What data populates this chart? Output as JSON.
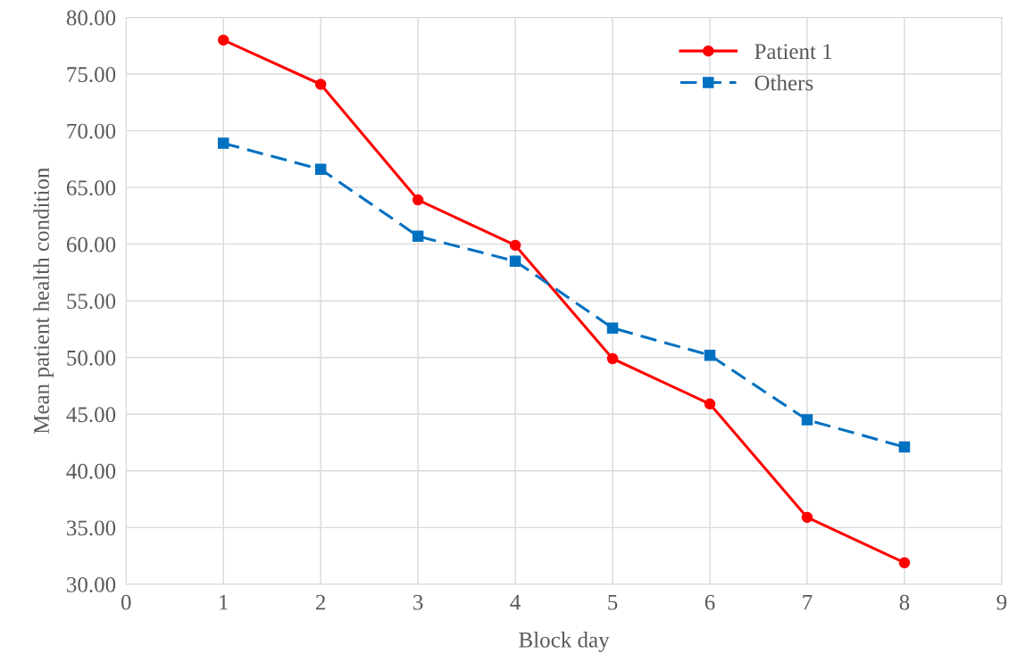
{
  "chart_data": {
    "type": "line",
    "xlabel": "Block day",
    "ylabel": "Mean patient health condition",
    "xlim": [
      0,
      9
    ],
    "xticks": [
      0,
      1,
      2,
      3,
      4,
      5,
      6,
      7,
      8,
      9
    ],
    "ylim": [
      30,
      80
    ],
    "yticks": [
      {
        "value": 30,
        "label": "30.00"
      },
      {
        "value": 35,
        "label": "35.00"
      },
      {
        "value": 40,
        "label": "40.00"
      },
      {
        "value": 45,
        "label": "45.00"
      },
      {
        "value": 50,
        "label": "50.00"
      },
      {
        "value": 55,
        "label": "55.00"
      },
      {
        "value": 60,
        "label": "60.00"
      },
      {
        "value": 65,
        "label": "65.00"
      },
      {
        "value": 70,
        "label": "70.00"
      },
      {
        "value": 75,
        "label": "75.00"
      },
      {
        "value": 80,
        "label": "80.00"
      }
    ],
    "grid": true,
    "legend": "top right",
    "series": [
      {
        "name": "Patient 1",
        "color": "#ff0000",
        "marker": "circle",
        "line_style": "solid",
        "x": [
          1,
          2,
          3,
          4,
          5,
          6,
          7,
          8
        ],
        "values": [
          78.0,
          74.1,
          63.9,
          59.9,
          49.9,
          45.9,
          35.9,
          31.9
        ]
      },
      {
        "name": "Others",
        "color": "#0070c0",
        "marker": "square",
        "line_style": "dashed",
        "x": [
          1,
          2,
          3,
          4,
          5,
          6,
          7,
          8
        ],
        "values": [
          68.9,
          66.6,
          60.7,
          58.5,
          52.6,
          50.2,
          44.5,
          42.1
        ]
      }
    ]
  }
}
